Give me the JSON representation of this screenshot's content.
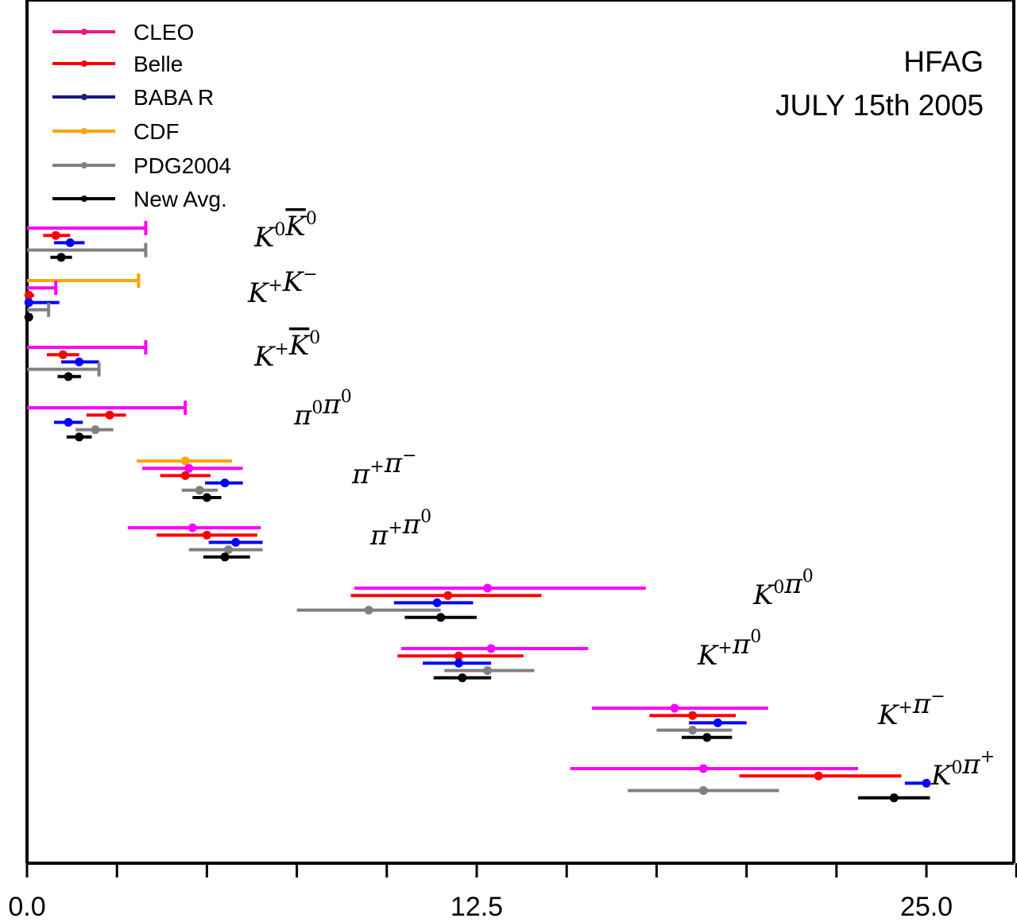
{
  "chart_data": {
    "type": "errorbar",
    "title": "",
    "annotation": [
      "HFAG",
      "JULY 15th 2005"
    ],
    "xlabel": "",
    "ylabel": "",
    "xlim": [
      0,
      27.5
    ],
    "xticks": [
      0,
      2.5,
      5,
      7.5,
      10,
      12.5,
      15,
      17.5,
      20,
      22.5,
      25,
      27.5
    ],
    "xtick_labels": [
      "0.0",
      "12.5",
      "25.0"
    ],
    "grid": false,
    "legend_position": "top-left",
    "series": [
      {
        "name": "CLEO",
        "color": "#ff00ff",
        "legend_color": "#e8198c"
      },
      {
        "name": "Belle",
        "color": "#ff0000",
        "legend_color": "#ff0000"
      },
      {
        "name": "BABA R",
        "color": "#0000ff",
        "legend_color": "#1a1a80"
      },
      {
        "name": "CDF",
        "color": "#ffa500",
        "legend_color": "#ffa500"
      },
      {
        "name": "PDG2004",
        "color": "#808080",
        "legend_color": "#808080"
      },
      {
        "name": "New Avg.",
        "color": "#000000",
        "legend_color": "#000000"
      }
    ],
    "modes": [
      {
        "label": "K0K0bar",
        "label_parts": [
          [
            "K",
            "0"
          ],
          [
            "K",
            "0",
            true
          ]
        ],
        "measurements": [
          {
            "series": "CLEO",
            "upper_limit": 3.3
          },
          {
            "series": "Belle",
            "value": 0.8,
            "low": 0.45,
            "high": 1.2
          },
          {
            "series": "BABA R",
            "value": 1.2,
            "low": 0.75,
            "high": 1.6
          },
          {
            "series": "PDG2004",
            "upper_limit": 3.3
          },
          {
            "series": "New Avg.",
            "value": 0.95,
            "low": 0.65,
            "high": 1.25
          }
        ]
      },
      {
        "label": "K+K-",
        "label_parts": [
          [
            "K",
            "+"
          ],
          [
            "K",
            "−"
          ]
        ],
        "measurements": [
          {
            "series": "CDF",
            "upper_limit": 3.1
          },
          {
            "series": "CLEO",
            "upper_limit": 0.8
          },
          {
            "series": "Belle",
            "value": 0.05,
            "low": 0.0,
            "high": 0.2
          },
          {
            "series": "BABA R",
            "value": 0.05,
            "low": 0.0,
            "high": 0.9
          },
          {
            "series": "PDG2004",
            "upper_limit": 0.6
          },
          {
            "series": "New Avg.",
            "value": 0.05,
            "low": 0.0,
            "high": 0.15
          }
        ]
      },
      {
        "label": "K+K0bar",
        "label_parts": [
          [
            "K",
            "+"
          ],
          [
            "K",
            "0",
            true
          ]
        ],
        "measurements": [
          {
            "series": "CLEO",
            "upper_limit": 3.3
          },
          {
            "series": "Belle",
            "value": 1.0,
            "low": 0.55,
            "high": 1.45
          },
          {
            "series": "BABA R",
            "value": 1.45,
            "low": 0.95,
            "high": 2.0
          },
          {
            "series": "PDG2004",
            "upper_limit": 2.0
          },
          {
            "series": "New Avg.",
            "value": 1.15,
            "low": 0.85,
            "high": 1.5
          }
        ]
      },
      {
        "label": "pi0pi0",
        "label_parts": [
          [
            "π",
            "0"
          ],
          [
            "π",
            "0"
          ]
        ],
        "measurements": [
          {
            "series": "CLEO",
            "upper_limit": 4.4
          },
          {
            "series": "Belle",
            "value": 2.3,
            "low": 1.65,
            "high": 2.75
          },
          {
            "series": "BABA R",
            "value": 1.15,
            "low": 0.75,
            "high": 1.55
          },
          {
            "series": "PDG2004",
            "value": 1.9,
            "low": 1.35,
            "high": 2.4
          },
          {
            "series": "New Avg.",
            "value": 1.45,
            "low": 1.1,
            "high": 1.8
          }
        ]
      },
      {
        "label": "pi+pi-",
        "label_parts": [
          [
            "π",
            "+"
          ],
          [
            "π",
            "−"
          ]
        ],
        "measurements": [
          {
            "series": "CDF",
            "value": 4.4,
            "low": 3.05,
            "high": 5.7
          },
          {
            "series": "CLEO",
            "value": 4.5,
            "low": 3.2,
            "high": 6.0
          },
          {
            "series": "Belle",
            "value": 4.4,
            "low": 3.7,
            "high": 5.1
          },
          {
            "series": "BABA R",
            "value": 5.5,
            "low": 4.95,
            "high": 6.0
          },
          {
            "series": "PDG2004",
            "value": 4.8,
            "low": 4.3,
            "high": 5.3
          },
          {
            "series": "New Avg.",
            "value": 5.0,
            "low": 4.6,
            "high": 5.4
          }
        ]
      },
      {
        "label": "pi+pi0",
        "label_parts": [
          [
            "π",
            "+"
          ],
          [
            "π",
            "0"
          ]
        ],
        "measurements": [
          {
            "series": "CLEO",
            "value": 4.6,
            "low": 2.8,
            "high": 6.5
          },
          {
            "series": "Belle",
            "value": 5.0,
            "low": 3.6,
            "high": 6.4
          },
          {
            "series": "BABA R",
            "value": 5.8,
            "low": 5.05,
            "high": 6.55
          },
          {
            "series": "PDG2004",
            "value": 5.6,
            "low": 4.5,
            "high": 6.55
          },
          {
            "series": "New Avg.",
            "value": 5.5,
            "low": 4.9,
            "high": 6.2
          }
        ]
      },
      {
        "label": "K0pi0",
        "label_parts": [
          [
            "K",
            "0"
          ],
          [
            "π",
            "0"
          ]
        ],
        "measurements": [
          {
            "series": "CLEO",
            "value": 12.8,
            "low": 9.1,
            "high": 17.2
          },
          {
            "series": "Belle",
            "value": 11.7,
            "low": 9.0,
            "high": 14.3
          },
          {
            "series": "BABA R",
            "value": 11.4,
            "low": 10.2,
            "high": 12.4
          },
          {
            "series": "PDG2004",
            "value": 9.5,
            "low": 7.5,
            "high": 11.5
          },
          {
            "series": "New Avg.",
            "value": 11.5,
            "low": 10.5,
            "high": 12.5
          }
        ]
      },
      {
        "label": "K+pi0",
        "label_parts": [
          [
            "K",
            "+"
          ],
          [
            "π",
            "0"
          ]
        ],
        "measurements": [
          {
            "series": "CLEO",
            "value": 12.9,
            "low": 10.4,
            "high": 15.6
          },
          {
            "series": "Belle",
            "value": 12.0,
            "low": 10.3,
            "high": 13.8
          },
          {
            "series": "BABA R",
            "value": 12.0,
            "low": 11.0,
            "high": 12.9
          },
          {
            "series": "PDG2004",
            "value": 12.8,
            "low": 11.6,
            "high": 14.1
          },
          {
            "series": "New Avg.",
            "value": 12.1,
            "low": 11.3,
            "high": 12.9
          }
        ]
      },
      {
        "label": "K+pi-",
        "label_parts": [
          [
            "K",
            "+"
          ],
          [
            "π",
            "−"
          ]
        ],
        "measurements": [
          {
            "series": "CLEO",
            "value": 18.0,
            "low": 15.7,
            "high": 20.6
          },
          {
            "series": "Belle",
            "value": 18.5,
            "low": 17.3,
            "high": 19.7
          },
          {
            "series": "BABA R",
            "value": 19.2,
            "low": 18.4,
            "high": 20.0
          },
          {
            "series": "PDG2004",
            "value": 18.5,
            "low": 17.5,
            "high": 19.6
          },
          {
            "series": "New Avg.",
            "value": 18.9,
            "low": 18.2,
            "high": 19.6
          }
        ]
      },
      {
        "label": "K0pi+",
        "label_parts": [
          [
            "K",
            "0"
          ],
          [
            "π",
            "+"
          ]
        ],
        "measurements": [
          {
            "series": "CLEO",
            "value": 18.8,
            "low": 15.1,
            "high": 23.1
          },
          {
            "series": "Belle",
            "value": 22.0,
            "low": 19.8,
            "high": 24.3
          },
          {
            "series": "BABA R",
            "value": 25.0,
            "low": 24.4,
            "high": 25.0
          },
          {
            "series": "PDG2004",
            "value": 18.8,
            "low": 16.7,
            "high": 20.9
          },
          {
            "series": "New Avg.",
            "value": 24.1,
            "low": 23.1,
            "high": 25.1
          }
        ]
      }
    ]
  }
}
